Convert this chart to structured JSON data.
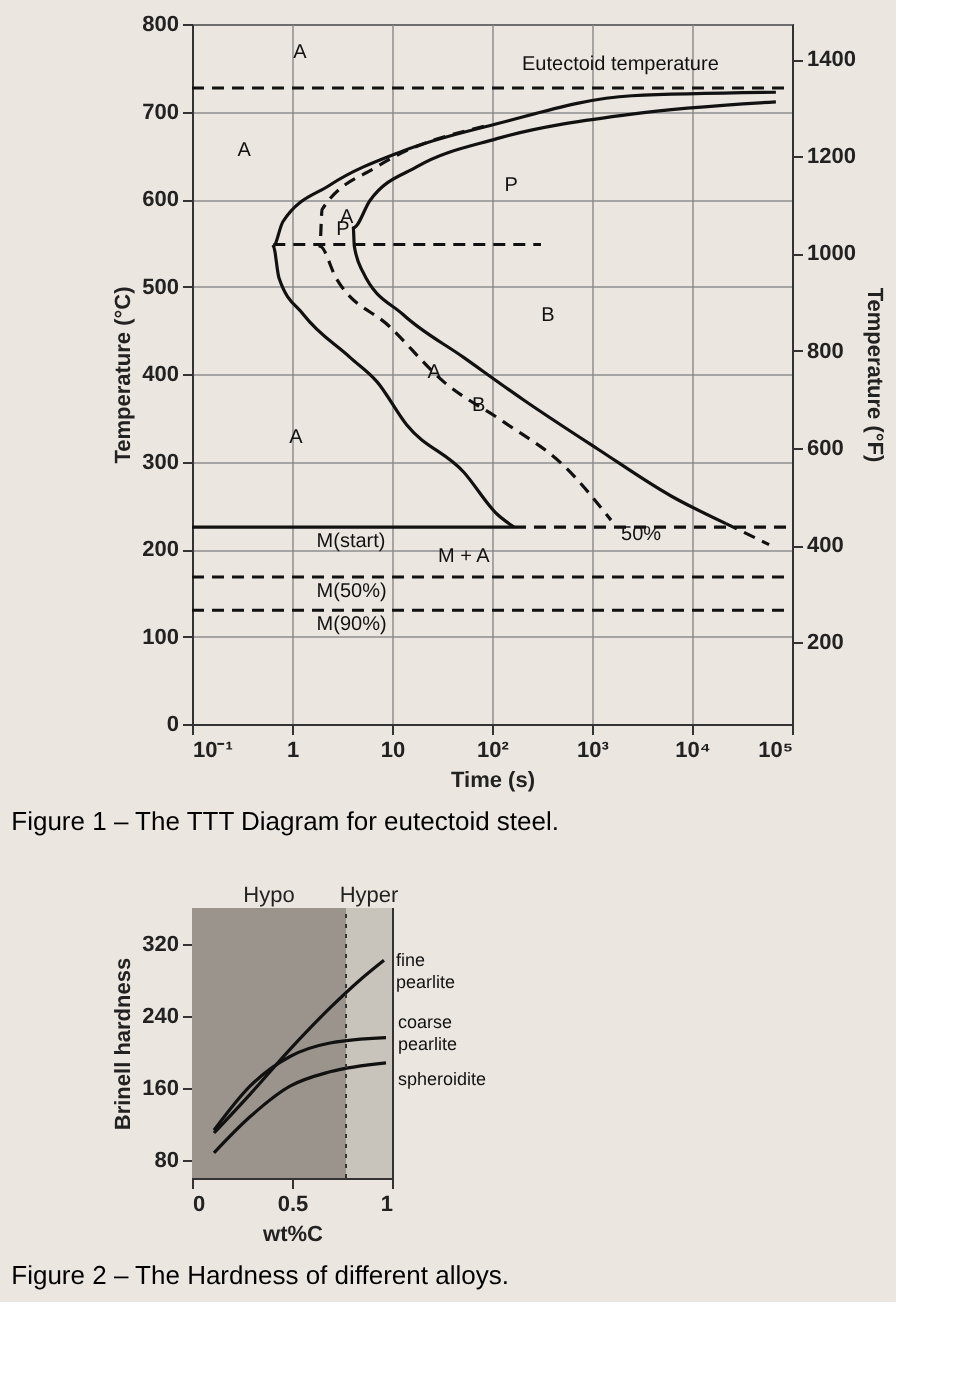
{
  "chart_data": [
    {
      "type": "line",
      "title": "Figure 1 – The TTT Diagram for eutectoid steel.",
      "xlabel": "Time (s)",
      "ylabel": "Temperature (°C)",
      "y2label": "Temperature (°F)",
      "log": "x",
      "xlim": [
        0.1,
        100000
      ],
      "xticks": [
        {
          "value": 0.1,
          "label": "10⁻¹"
        },
        1,
        10,
        {
          "value": 100,
          "label": "10²"
        },
        {
          "value": 1000,
          "label": "10³"
        },
        {
          "value": 10000,
          "label": "10⁴"
        },
        {
          "value": 100000,
          "label": "10⁵"
        }
      ],
      "ylim": [
        0,
        800
      ],
      "yticks": [
        0,
        100,
        200,
        300,
        400,
        500,
        600,
        700,
        800
      ],
      "y2lim": [
        32,
        1472
      ],
      "y2ticks": [
        200,
        400,
        600,
        800,
        1000,
        1200,
        1400
      ],
      "grid": true,
      "series": [
        {
          "color": "#111111",
          "line_style": "solid",
          "x": [
            69000,
            2500,
            112,
            12.9,
            2.4,
            0.81,
            0.65,
            0.74,
            1.3,
            3.8,
            7.1,
            14,
            52,
            112,
            166
          ],
          "values": [
            722,
            718,
            686,
            655,
            616,
            574,
            546,
            510,
            468,
            419,
            391,
            342,
            288,
            240,
            225
          ]
        },
        {
          "color": "#111111",
          "line_style": "dashed",
          "x": [
            83,
            7.1,
            2.0,
            1.9,
            2.75,
            9.5,
            33,
            132,
            525,
            1550
          ],
          "values": [
            683,
            637,
            588,
            546,
            510,
            454,
            391,
            345,
            295,
            233
          ]
        },
        {
          "color": "#111111",
          "line_style": "solid",
          "x": [
            69000,
            2500,
            112,
            17.8,
            6.0,
            4.1,
            4.2,
            5.1,
            12.9,
            52,
            209,
            1150,
            6300,
            21900
          ],
          "values": [
            711,
            697,
            669,
            637,
            598,
            567,
            546,
            517,
            468,
            419,
            370,
            314,
            260,
            229
          ]
        },
        {
          "color": "#111111",
          "line_style": "dashed",
          "x": [
            21900,
            59000
          ],
          "values": [
            229,
            205
          ]
        },
        {
          "color": "#111111",
          "line_style": "dashed",
          "x": [
            0.65,
            309
          ],
          "values": [
            548,
            548
          ]
        },
        {
          "color": "#111111",
          "line_style": "solid",
          "x": [
            0.1,
            166
          ],
          "values": [
            225,
            225
          ]
        },
        {
          "color": "#111111",
          "line_style": "dashed",
          "x": [
            166,
            100000
          ],
          "values": [
            225,
            225
          ]
        },
        {
          "color": "#111111",
          "line_style": "dashed",
          "x": [
            0.1,
            100000
          ],
          "values": [
            168,
            168
          ]
        },
        {
          "color": "#111111",
          "line_style": "dashed",
          "x": [
            0.1,
            100000
          ],
          "values": [
            130,
            130
          ]
        }
      ],
      "ref_lines": [
        {
          "axis": "y",
          "value": 727,
          "label": "Eutectoid temperature",
          "color": "#111111",
          "line_style": "dashed"
        }
      ],
      "annotations": [
        "A",
        "A",
        "P",
        "B",
        "A",
        "M + A",
        {
          "text": "P",
          "x": 2.2,
          "y": 582
        },
        {
          "text": "A",
          "x": 2.4,
          "y": 596
        },
        {
          "text": "A",
          "x": 18,
          "y": 418
        },
        {
          "text": "B",
          "x": 50,
          "y": 381
        },
        {
          "text": "M(start)",
          "x": 1.4,
          "y": 225
        },
        {
          "text": "M(50%)",
          "x": 1.4,
          "y": 168
        },
        {
          "text": "M(90%)",
          "x": 1.4,
          "y": 130
        },
        {
          "text": "50%",
          "x": 1550,
          "y": 233
        }
      ]
    },
    {
      "type": "line",
      "title": "Figure 2 – The Hardness of different alloys.",
      "xlabel": "wt%C",
      "ylabel": "Brinell hardness",
      "xlim": [
        0,
        1
      ],
      "xticks": [
        0,
        0.5,
        1
      ],
      "ylim": [
        60,
        360
      ],
      "yticks": [
        80,
        160,
        240,
        320
      ],
      "series": [
        {
          "name": "fine pearlite",
          "color": "#111111",
          "line_style": "solid",
          "x": [
            0.11,
            0.29,
            0.49,
            0.69,
            0.85,
            0.96
          ],
          "values": [
            110,
            153,
            203,
            249,
            282,
            302
          ]
        },
        {
          "name": "coarse pearlite",
          "color": "#111111",
          "line_style": "solid",
          "x": [
            0.11,
            0.29,
            0.49,
            0.69,
            0.97
          ],
          "values": [
            113,
            162,
            195,
            210,
            216
          ]
        },
        {
          "name": "spheroidite",
          "color": "#111111",
          "line_style": "solid",
          "x": [
            0.11,
            0.29,
            0.49,
            0.69,
            0.97
          ],
          "values": [
            88,
            128,
            162,
            178,
            188
          ]
        }
      ],
      "bands": [
        {
          "axis": "x",
          "from": 0,
          "to": 0.77,
          "label": "Hypo",
          "color": "#9a948c"
        },
        {
          "axis": "x",
          "from": 0.77,
          "to": 1,
          "label": "Hyper",
          "color": "#c8c3bb"
        }
      ],
      "ref_lines": [
        {
          "axis": "x",
          "value": 0.77,
          "color": "#333333",
          "line_style": "dotted"
        }
      ]
    }
  ]
}
